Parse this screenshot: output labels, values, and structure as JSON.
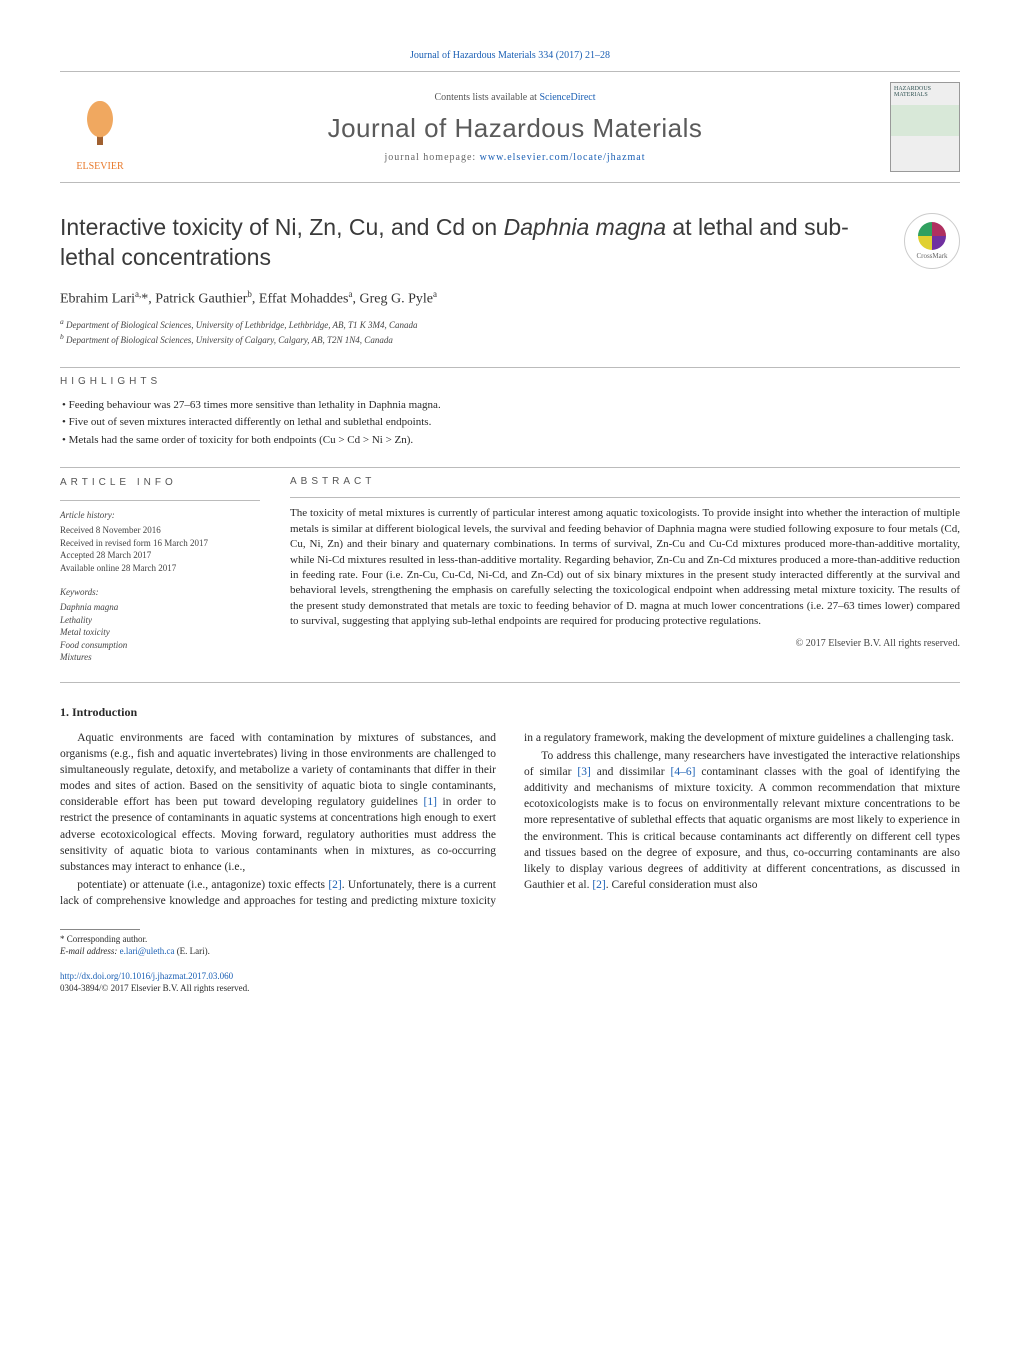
{
  "meta": {
    "citation_line_prefix": "Journal of Hazardous Materials 334 (2017) 21–28",
    "contents_prefix": "Contents lists available at ",
    "contents_link": "ScienceDirect",
    "journal_title": "Journal of Hazardous Materials",
    "homepage_label": "journal homepage: ",
    "homepage_url": "www.elsevier.com/locate/jhazmat",
    "publisher_logo_text": "ELSEVIER",
    "cover_text": "HAZARDOUS MATERIALS",
    "colors": {
      "link": "#1a5fb4",
      "text": "#2a2a2a",
      "muted": "#555555",
      "rule": "#bbbbbb",
      "elsevier_orange": "#e8792b"
    },
    "fontsizes_pt": {
      "journal_title": 20,
      "article_title": 17,
      "body": 9,
      "small": 7
    }
  },
  "article": {
    "title_html": "Interactive toxicity of Ni, Zn, Cu, and Cd on <em>Daphnia magna</em> at lethal and sub-lethal concentrations",
    "crossmark_label": "CrossMark",
    "authors_html": "Ebrahim Lari<sup>a,</sup>*, Patrick Gauthier<sup>b</sup>, Effat Mohaddes<sup>a</sup>, Greg G. Pyle<sup>a</sup>",
    "affiliations": [
      "a Department of Biological Sciences, University of Lethbridge, Lethbridge, AB, T1 K 3M4, Canada",
      "b Department of Biological Sciences, University of Calgary, Calgary, AB, T2N 1N4, Canada"
    ]
  },
  "highlights": {
    "heading": "highlights",
    "items": [
      "Feeding behaviour was 27–63 times more sensitive than lethality in Daphnia magna.",
      "Five out of seven mixtures interacted differently on lethal and sublethal endpoints.",
      "Metals had the same order of toxicity for both endpoints (Cu > Cd > Ni > Zn)."
    ]
  },
  "article_info": {
    "heading": "article info",
    "history_head": "Article history:",
    "history": [
      "Received 8 November 2016",
      "Received in revised form 16 March 2017",
      "Accepted 28 March 2017",
      "Available online 28 March 2017"
    ],
    "keywords_head": "Keywords:",
    "keywords": [
      "Daphnia magna",
      "Lethality",
      "Metal toxicity",
      "Food consumption",
      "Mixtures"
    ]
  },
  "abstract": {
    "heading": "abstract",
    "text": "The toxicity of metal mixtures is currently of particular interest among aquatic toxicologists. To provide insight into whether the interaction of multiple metals is similar at different biological levels, the survival and feeding behavior of Daphnia magna were studied following exposure to four metals (Cd, Cu, Ni, Zn) and their binary and quaternary combinations. In terms of survival, Zn-Cu and Cu-Cd mixtures produced more-than-additive mortality, while Ni-Cd mixtures resulted in less-than-additive mortality. Regarding behavior, Zn-Cu and Zn-Cd mixtures produced a more-than-additive reduction in feeding rate. Four (i.e. Zn-Cu, Cu-Cd, Ni-Cd, and Zn-Cd) out of six binary mixtures in the present study interacted differently at the survival and behavioral levels, strengthening the emphasis on carefully selecting the toxicological endpoint when addressing metal mixture toxicity. The results of the present study demonstrated that metals are toxic to feeding behavior of D. magna at much lower concentrations (i.e. 27–63 times lower) compared to survival, suggesting that applying sub-lethal endpoints are required for producing protective regulations.",
    "copyright": "© 2017 Elsevier B.V. All rights reserved."
  },
  "body": {
    "section_number": "1.",
    "section_title": "Introduction",
    "paragraphs": [
      "Aquatic environments are faced with contamination by mixtures of substances, and organisms (e.g., fish and aquatic invertebrates) living in those environments are challenged to simultaneously regulate, detoxify, and metabolize a variety of contaminants that differ in their modes and sites of action. Based on the sensitivity of aquatic biota to single contaminants, considerable effort has been put toward developing regulatory guidelines [1] in order to restrict the presence of contaminants in aquatic systems at concentrations high enough to exert adverse ecotoxicological effects. Moving forward, regulatory authorities must address the sensitivity of aquatic biota to various contaminants when in mixtures, as co-occurring substances may interact to enhance (i.e.,",
      "potentiate) or attenuate (i.e., antagonize) toxic effects [2]. Unfortunately, there is a current lack of comprehensive knowledge and approaches for testing and predicting mixture toxicity in a regulatory framework, making the development of mixture guidelines a challenging task.",
      "To address this challenge, many researchers have investigated the interactive relationships of similar [3] and dissimilar [4–6] contaminant classes with the goal of identifying the additivity and mechanisms of mixture toxicity. A common recommendation that mixture ecotoxicologists make is to focus on environmentally relevant mixture concentrations to be more representative of sublethal effects that aquatic organisms are most likely to experience in the environment. This is critical because contaminants act differently on different cell types and tissues based on the degree of exposure, and thus, co-occurring contaminants are also likely to display various degrees of additivity at different concentrations, as discussed in Gauthier et al. [2]. Careful consideration must also"
    ],
    "refs": {
      "r1": "[1]",
      "r2": "[2]",
      "r3": "[3]",
      "r46": "[4–6]"
    }
  },
  "footnote": {
    "corr": "* Corresponding author.",
    "email_label": "E-mail address: ",
    "email": "e.lari@uleth.ca",
    "email_who": " (E. Lari)."
  },
  "doi": {
    "url": "http://dx.doi.org/10.1016/j.jhazmat.2017.03.060",
    "issn_line": "0304-3894/© 2017 Elsevier B.V. All rights reserved."
  }
}
